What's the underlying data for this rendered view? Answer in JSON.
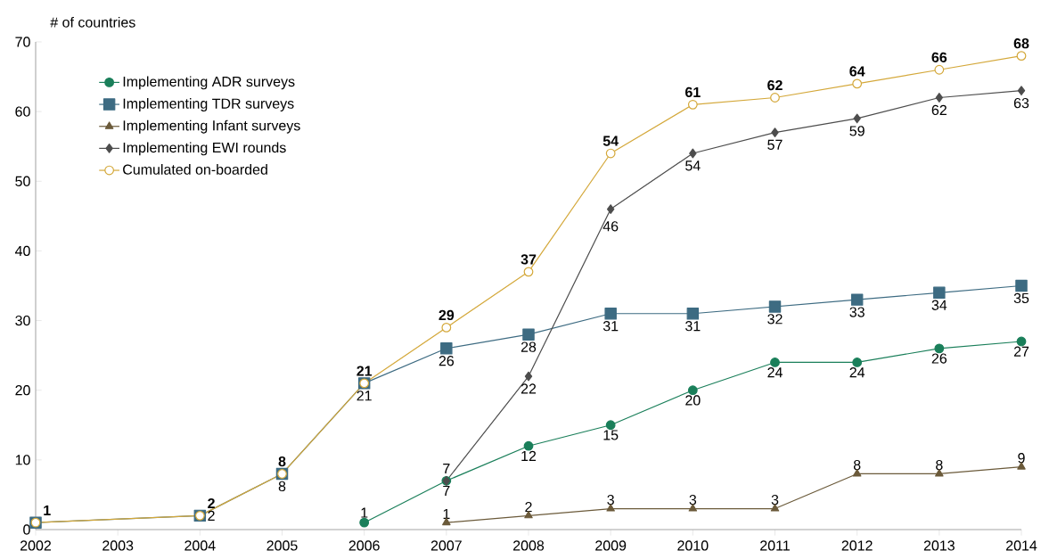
{
  "chart_data": {
    "type": "line",
    "ylabel": "# of countries",
    "categories": [
      "2002",
      "2003",
      "2004",
      "2005",
      "2006",
      "2007",
      "2008",
      "2009",
      "2010",
      "2011",
      "2012",
      "2013",
      "2014"
    ],
    "ylim": [
      0,
      70
    ],
    "yticks": [
      0,
      10,
      20,
      30,
      40,
      50,
      60,
      70
    ],
    "grid": false,
    "legend": "top left",
    "series": [
      {
        "name": "Implementing ADR surveys",
        "color": "#1a7f5a",
        "marker": "circle",
        "values": [
          null,
          null,
          null,
          null,
          1,
          7,
          12,
          15,
          20,
          24,
          24,
          26,
          27
        ],
        "value_labels": [
          null,
          null,
          null,
          null,
          "1",
          "7",
          "12",
          "15",
          "20",
          "24",
          "24",
          "26",
          "27"
        ]
      },
      {
        "name": "Implementing TDR surveys",
        "color": "#3d6b82",
        "marker": "square",
        "values": [
          1,
          null,
          2,
          8,
          21,
          26,
          28,
          31,
          31,
          32,
          33,
          34,
          35
        ],
        "value_labels": [
          null,
          null,
          "2",
          "8",
          "21",
          "26",
          "28",
          "31",
          "31",
          "32",
          "33",
          "34",
          "35"
        ]
      },
      {
        "name": "Implementing Infant surveys",
        "color": "#6b5a3a",
        "marker": "triangle",
        "values": [
          null,
          null,
          null,
          null,
          null,
          1,
          2,
          3,
          3,
          3,
          8,
          8,
          9
        ],
        "value_labels": [
          null,
          null,
          null,
          null,
          null,
          "1",
          "2",
          "3",
          "3",
          "3",
          "8",
          "8",
          "9"
        ]
      },
      {
        "name": "Implementing EWI rounds",
        "color": "#4d4d4d",
        "marker": "diamond",
        "values": [
          null,
          null,
          null,
          null,
          null,
          7,
          22,
          46,
          54,
          57,
          59,
          62,
          63
        ],
        "value_labels": [
          null,
          null,
          null,
          null,
          null,
          "7",
          "22",
          "46",
          "54",
          "57",
          "59",
          "62",
          "63"
        ]
      },
      {
        "name": "Cumulated on-boarded",
        "color": "#d4a83a",
        "marker": "circle",
        "values": [
          1,
          null,
          2,
          8,
          21,
          29,
          37,
          54,
          61,
          62,
          64,
          66,
          68
        ],
        "value_labels": [
          "**1**",
          null,
          "**2**",
          "**8**",
          "**21**",
          "**29**",
          "**37**",
          "**54**",
          "**61**",
          "**62**",
          "**64**",
          "**66**",
          "**68**"
        ]
      }
    ]
  }
}
